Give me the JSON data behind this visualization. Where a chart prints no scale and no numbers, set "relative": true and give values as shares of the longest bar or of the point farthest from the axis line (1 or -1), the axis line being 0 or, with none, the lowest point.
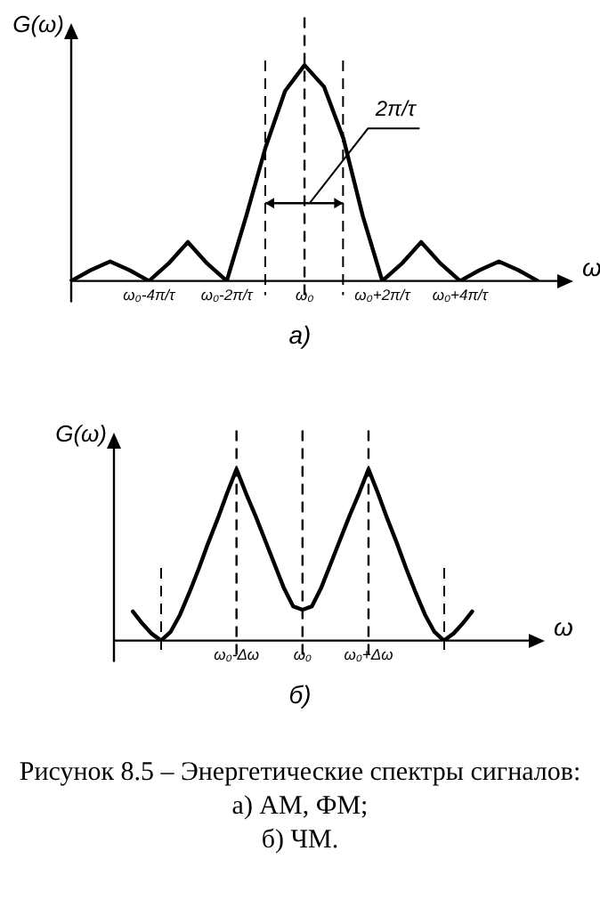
{
  "chart_data": [
    {
      "type": "line",
      "title": "а)",
      "xlabel": "ω",
      "ylabel": "G(ω)",
      "relative": true,
      "color": "#000000",
      "marker": "none",
      "line_style": "solid",
      "categories": [
        null,
        null,
        null,
        null,
        "ω₀-4π/τ",
        null,
        null,
        null,
        "ω₀-2π/τ",
        null,
        null,
        null,
        "ω₀",
        null,
        null,
        null,
        "ω₀+2π/τ",
        null,
        null,
        null,
        "ω₀+4π/τ",
        null,
        null,
        null,
        null,
        null
      ],
      "values": [
        0,
        0.05,
        0.09,
        0.05,
        0,
        0.08,
        0.18,
        0.08,
        0,
        0.3,
        0.62,
        0.88,
        1,
        0.9,
        0.66,
        0.3,
        0,
        0.08,
        0.18,
        0.08,
        0,
        0.05,
        0.09,
        0.05,
        0,
        null
      ],
      "ref_lines": [
        {
          "axis": "x",
          "value": "ω₀",
          "label": null,
          "color": "#000000",
          "line_style": "dashed"
        }
      ],
      "annotations": [
        "2π/τ"
      ]
    },
    {
      "type": "line",
      "title": "б)",
      "xlabel": "ω",
      "ylabel": "G(ω)",
      "relative": true,
      "color": "#000000",
      "marker": "none",
      "line_style": "solid",
      "categories": [
        null,
        null,
        null,
        null,
        null,
        null,
        null,
        null,
        null,
        null,
        null,
        null,
        null,
        "ω₀-Δω",
        null,
        null,
        null,
        null,
        null,
        null,
        "ω₀",
        null,
        null,
        null,
        null,
        null,
        null,
        "ω₀+Δω",
        null,
        null,
        null,
        null,
        null,
        null,
        null,
        null,
        null,
        null,
        null,
        null,
        null,
        null,
        null,
        null,
        null
      ],
      "values": [
        null,
        null,
        0.17,
        0.1,
        0.04,
        0,
        0.05,
        0.15,
        0.28,
        0.42,
        0.57,
        0.71,
        0.86,
        1,
        0.86,
        0.73,
        0.59,
        0.45,
        0.31,
        0.2,
        0.18,
        0.2,
        0.31,
        0.45,
        0.59,
        0.73,
        0.86,
        1,
        0.86,
        0.71,
        0.57,
        0.42,
        0.28,
        0.15,
        0.05,
        0,
        0.04,
        0.1,
        0.17,
        null,
        null,
        null,
        null,
        null,
        null
      ],
      "ref_lines": [
        {
          "axis": "x",
          "value": "ω₀-Δω",
          "label": null,
          "color": "#000000",
          "line_style": "dashed"
        },
        {
          "axis": "x",
          "value": "ω₀",
          "label": null,
          "color": "#000000",
          "line_style": "dashed"
        },
        {
          "axis": "x",
          "value": "ω₀+Δω",
          "label": null,
          "color": "#000000",
          "line_style": "dashed"
        }
      ]
    },
    {
      "type": "other",
      "title": "Рисунок 8.5 – Энергетические спектры сигналов:",
      "annotations": [
        "а) АМ, ФМ;",
        "б) ЧМ."
      ]
    }
  ]
}
